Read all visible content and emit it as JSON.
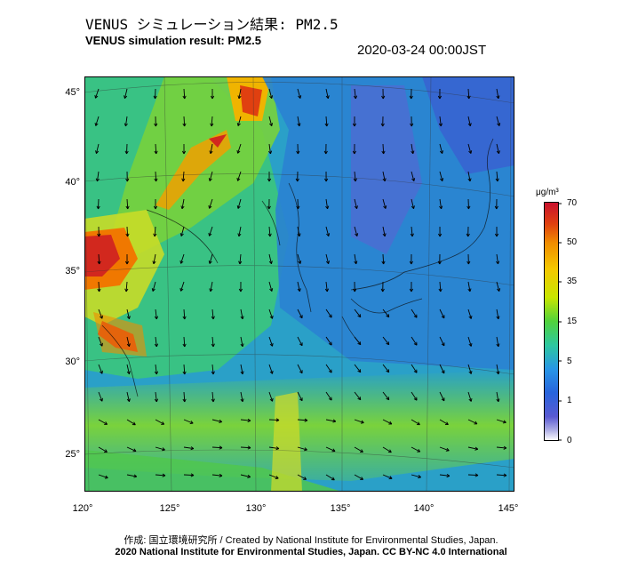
{
  "header": {
    "title_jp": "VENUS シミュレーション結果: PM2.5",
    "title_en": "VENUS simulation result: PM2.5",
    "timestamp": "2020-03-24 00:00JST"
  },
  "map": {
    "lat_labels": [
      "45°",
      "40°",
      "35°",
      "30°",
      "25°"
    ],
    "lon_labels": [
      "120°",
      "125°",
      "130°",
      "135°",
      "140°",
      "145°"
    ]
  },
  "colorbar": {
    "unit": "μg/m³",
    "ticks": [
      "70",
      "50",
      "35",
      "15",
      "5",
      "1",
      "0"
    ],
    "colors": [
      "#c8102e",
      "#e04010",
      "#f08c00",
      "#f5c800",
      "#c8e600",
      "#50d23c",
      "#2dc8a0",
      "#2896e6",
      "#2864dc",
      "#5a5ad2",
      "#b4b4e6",
      "#ffffff"
    ]
  },
  "footer": {
    "credit_line1": "作成: 国立環境研究所 / Created by National Institute for Environmental Studies, Japan.",
    "credit_line2": "2020 National Institute for Environmental Studies, Japan. CC BY-NC 4.0 International"
  }
}
